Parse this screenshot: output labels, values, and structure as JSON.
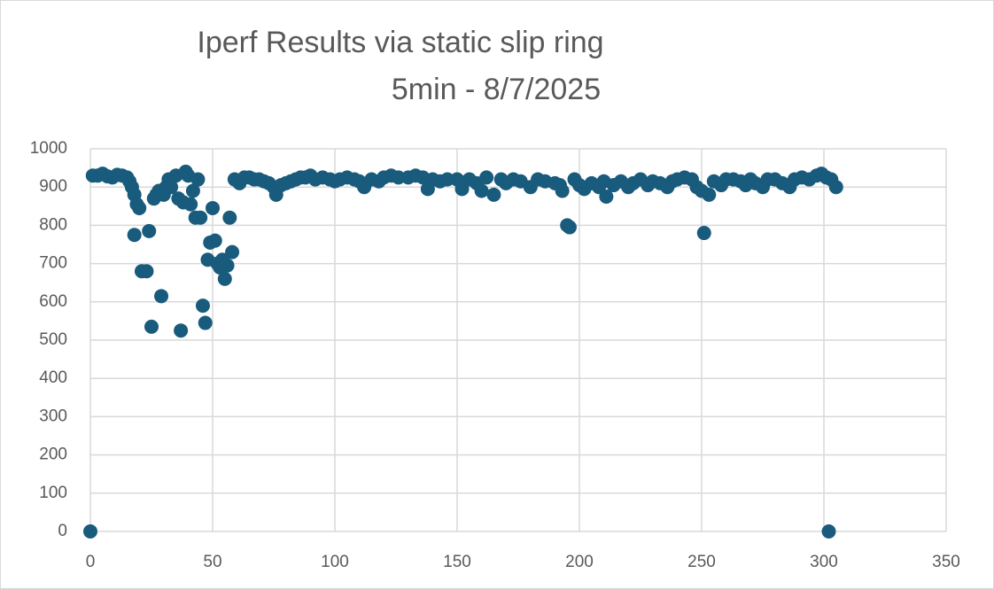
{
  "chart_data": {
    "type": "scatter",
    "title": "Iperf Results via static slip ring",
    "subtitle": "5min - 8/7/2025",
    "color": "#195b7c",
    "xlim": [
      0,
      350
    ],
    "xticks": [
      0,
      50,
      100,
      150,
      200,
      250,
      300,
      350
    ],
    "ylim": [
      0,
      1000
    ],
    "yticks": [
      0,
      100,
      200,
      300,
      400,
      500,
      600,
      700,
      800,
      900,
      1000
    ],
    "grid": true,
    "x": [
      0,
      1,
      3,
      5,
      7,
      9,
      11,
      13,
      15,
      16,
      17,
      18,
      19,
      20,
      18,
      21,
      23,
      24,
      25,
      26,
      27,
      28,
      29,
      30,
      31,
      32,
      33,
      35,
      36,
      37,
      38,
      39,
      40,
      41,
      42,
      43,
      44,
      45,
      46,
      47,
      48,
      49,
      50,
      51,
      52,
      53,
      54,
      55,
      56,
      57,
      58,
      59,
      61,
      63,
      65,
      67,
      69,
      71,
      73,
      75,
      76,
      78,
      80,
      82,
      84,
      86,
      88,
      90,
      92,
      95,
      98,
      100,
      102,
      105,
      108,
      110,
      112,
      115,
      118,
      120,
      123,
      126,
      130,
      133,
      136,
      138,
      140,
      143,
      146,
      150,
      152,
      155,
      158,
      160,
      162,
      165,
      168,
      170,
      173,
      176,
      180,
      183,
      186,
      190,
      192,
      193,
      195,
      196,
      198,
      200,
      202,
      205,
      208,
      210,
      211,
      214,
      217,
      220,
      222,
      225,
      228,
      230,
      233,
      236,
      238,
      240,
      243,
      246,
      248,
      250,
      251,
      253,
      255,
      258,
      260,
      263,
      266,
      268,
      270,
      272,
      275,
      277,
      280,
      283,
      286,
      288,
      291,
      294,
      297,
      299,
      301,
      302,
      303,
      305
    ],
    "y": [
      0,
      930,
      930,
      935,
      928,
      925,
      932,
      930,
      925,
      915,
      900,
      880,
      855,
      845,
      775,
      680,
      680,
      785,
      535,
      870,
      880,
      890,
      615,
      880,
      900,
      920,
      900,
      930,
      870,
      525,
      860,
      940,
      930,
      855,
      890,
      820,
      920,
      820,
      590,
      545,
      710,
      755,
      845,
      760,
      700,
      690,
      710,
      660,
      695,
      820,
      730,
      920,
      910,
      925,
      925,
      920,
      920,
      915,
      910,
      900,
      880,
      905,
      910,
      915,
      920,
      925,
      925,
      930,
      920,
      925,
      920,
      915,
      920,
      925,
      920,
      915,
      900,
      920,
      915,
      925,
      930,
      925,
      925,
      930,
      925,
      895,
      920,
      915,
      920,
      920,
      895,
      920,
      910,
      890,
      925,
      880,
      920,
      910,
      920,
      915,
      900,
      920,
      915,
      910,
      905,
      890,
      800,
      795,
      920,
      905,
      895,
      910,
      900,
      915,
      875,
      905,
      915,
      900,
      910,
      920,
      905,
      915,
      910,
      900,
      915,
      920,
      925,
      920,
      900,
      890,
      780,
      880,
      915,
      905,
      920,
      920,
      915,
      905,
      920,
      910,
      900,
      920,
      920,
      910,
      900,
      920,
      925,
      920,
      930,
      935,
      925,
      0,
      920,
      900
    ]
  }
}
